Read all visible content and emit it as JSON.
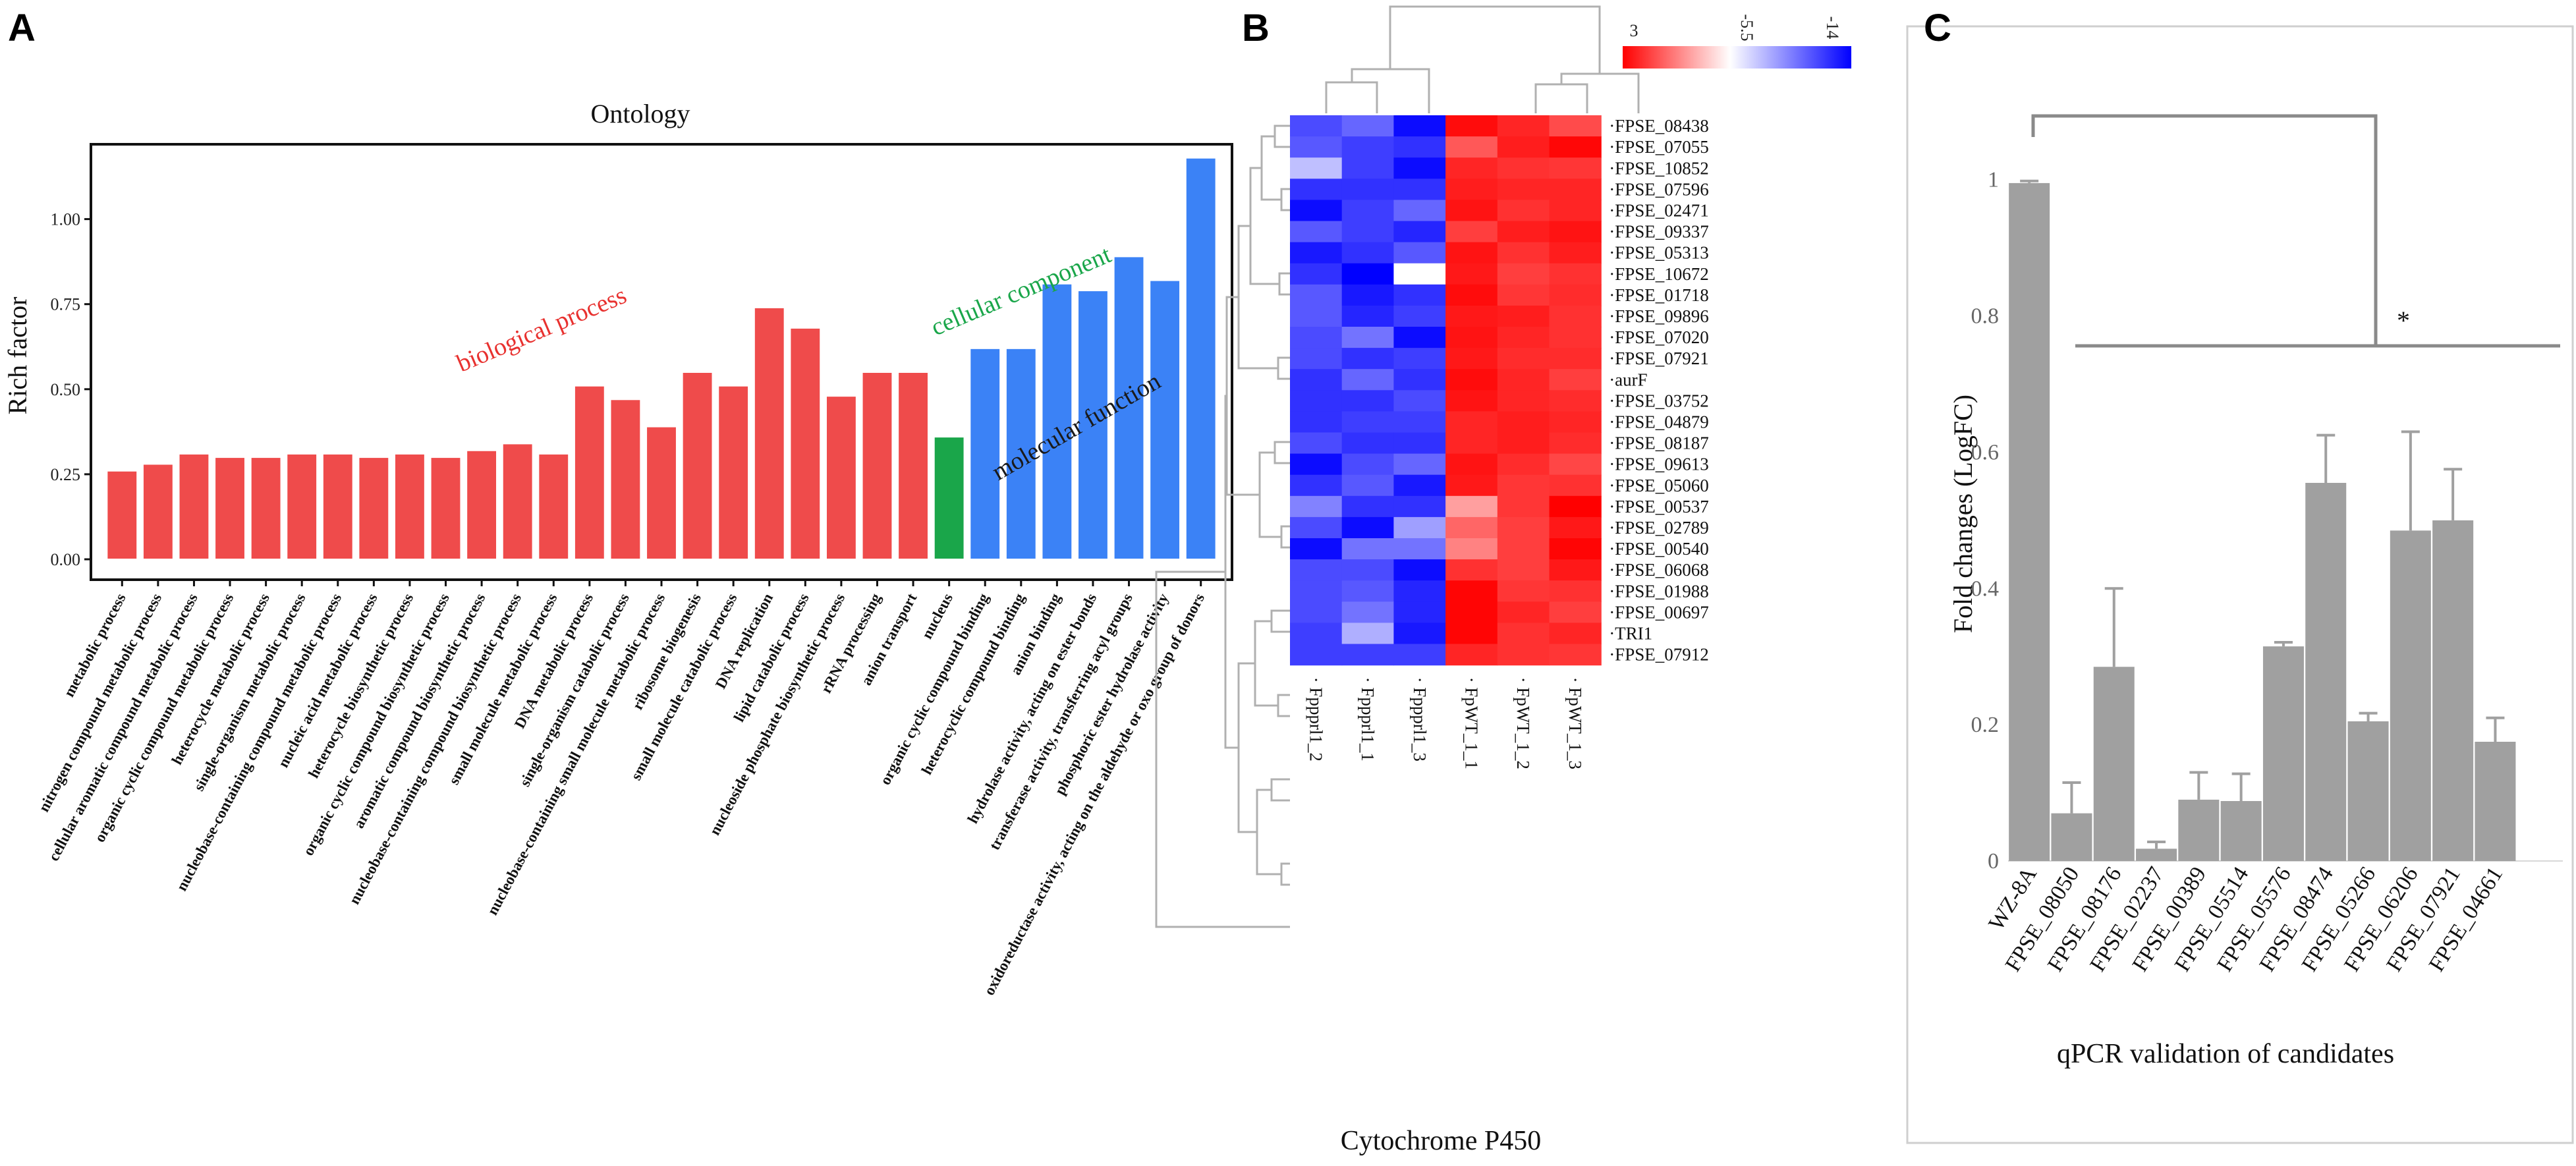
{
  "panel_labels": {
    "a": "A",
    "b": "B",
    "c": "C"
  },
  "chart_data": [
    {
      "type": "bar",
      "panel": "A",
      "title": "Ontology",
      "ylabel": "Rich factor",
      "ylim": [
        -0.06,
        1.22
      ],
      "yticks": [
        0.0,
        0.25,
        0.5,
        0.75,
        1.0
      ],
      "ytick_labels": [
        "0.00",
        "0.25",
        "0.50",
        "0.75",
        "1.00"
      ],
      "categories": [
        "metabolic process",
        "nitrogen compound metabolic process",
        "cellular aromatic compound metabolic process",
        "organic cyclic compound metabolic process",
        "heterocycle metabolic process",
        "single-organism metabolic process",
        "nucleobase-containing compound metabolic process",
        "nucleic acid metabolic process",
        "heterocycle biosynthetic process",
        "organic cyclic compound biosynthetic process",
        "aromatic compound biosynthetic process",
        "nucleobase-containing compound biosynthetic process",
        "small molecule metabolic process",
        "DNA metabolic process",
        "single-organism catabolic process",
        "nucleobase-containing small molecule metabolic process",
        "ribosome biogenesis",
        "small molecule catabolic process",
        "DNA replication",
        "lipid catabolic process",
        "nucleoside phosphate biosynthetic process",
        "rRNA processing",
        "anion transport",
        "nucleus",
        "organic cyclic compound binding",
        "heterocyclic compound binding",
        "anion binding",
        "hydrolase activity, acting on ester bonds",
        "transferase activity, transferring acyl groups",
        "phosphoric ester hydrolase activity",
        "oxidoreductase activity, acting on the aldehyde or oxo group of donors"
      ],
      "values": [
        0.26,
        0.28,
        0.31,
        0.3,
        0.3,
        0.31,
        0.31,
        0.3,
        0.31,
        0.3,
        0.32,
        0.34,
        0.31,
        0.51,
        0.47,
        0.39,
        0.55,
        0.51,
        0.74,
        0.68,
        0.48,
        0.55,
        0.55,
        0.36,
        0.62,
        0.62,
        0.81,
        0.79,
        0.89,
        0.82,
        1.18
      ],
      "groups": [
        "bp",
        "bp",
        "bp",
        "bp",
        "bp",
        "bp",
        "bp",
        "bp",
        "bp",
        "bp",
        "bp",
        "bp",
        "bp",
        "bp",
        "bp",
        "bp",
        "bp",
        "bp",
        "bp",
        "bp",
        "bp",
        "bp",
        "bp",
        "cc",
        "mf",
        "mf",
        "mf",
        "mf",
        "mf",
        "mf",
        "mf"
      ],
      "group_colors": {
        "bp": "#ef4b4b",
        "cc": "#1aa64a",
        "mf": "#3b82f6"
      },
      "annotations": [
        {
          "text": "biological process",
          "color": "#e8312f"
        },
        {
          "text": "cellular component",
          "color": "#1aa64a"
        },
        {
          "text": "molecular function",
          "color": "#1a1a1a"
        }
      ]
    },
    {
      "type": "heatmap",
      "panel": "B",
      "title": "Cytochrome P450",
      "colorbar": {
        "labels": [
          "3",
          "-5.5",
          "-14"
        ],
        "colors": [
          "#ff0000",
          "#ffffff",
          "#0000ff"
        ]
      },
      "columns": [
        "Fppprl1_2",
        "Fppprl1_1",
        "Fppprl1_3",
        "FpWT_1_1",
        "FpWT_1_2",
        "FpWT_1_3"
      ],
      "rows": [
        "FPSE_08438",
        "FPSE_07055",
        "FPSE_10852",
        "FPSE_07596",
        "FPSE_02471",
        "FPSE_09337",
        "FPSE_05313",
        "FPSE_10672",
        "FPSE_01718",
        "FPSE_09896",
        "FPSE_07020",
        "FPSE_07921",
        "aurF",
        "FPSE_03752",
        "FPSE_04879",
        "FPSE_08187",
        "FPSE_09613",
        "FPSE_05060",
        "FPSE_00537",
        "FPSE_02789",
        "FPSE_00540",
        "FPSE_06068",
        "FPSE_01988",
        "FPSE_00697",
        "TRI1",
        "FPSE_07912"
      ],
      "value_range": [
        -14,
        3
      ],
      "values": [
        [
          -11,
          -10,
          -13.5,
          2.5,
          1.5,
          0
        ],
        [
          -10.5,
          -11.5,
          -12,
          -0.5,
          1.8,
          2.7
        ],
        [
          -7,
          -11.5,
          -13.5,
          1.5,
          1,
          0.8
        ],
        [
          -12,
          -12,
          -12,
          1.8,
          1.5,
          1.5
        ],
        [
          -13.5,
          -11.5,
          -10,
          2.2,
          1,
          1.5
        ],
        [
          -10.5,
          -11.5,
          -12.5,
          0.5,
          1.8,
          2.2
        ],
        [
          -13,
          -12,
          -10.5,
          2.2,
          1,
          1.8
        ],
        [
          -12,
          -14,
          -5.5,
          2,
          0.5,
          1
        ],
        [
          -10.5,
          -13,
          -12,
          2.5,
          0.8,
          1.2
        ],
        [
          -10.5,
          -12.5,
          -11.5,
          2,
          1.8,
          1
        ],
        [
          -11,
          -9.5,
          -13.5,
          2.2,
          1.5,
          1
        ],
        [
          -11,
          -12,
          -11.5,
          2,
          1.2,
          1.2
        ],
        [
          -12,
          -10,
          -12,
          2.5,
          1.5,
          0.5
        ],
        [
          -12,
          -12,
          -11,
          2.2,
          1.5,
          1.2
        ],
        [
          -12,
          -11.5,
          -11.5,
          1.5,
          1.8,
          1.5
        ],
        [
          -11,
          -12,
          -12,
          1.5,
          1.8,
          1.2
        ],
        [
          -13.5,
          -11,
          -10,
          2.2,
          1.2,
          0.2
        ],
        [
          -12,
          -10.5,
          -13,
          2,
          0.8,
          1
        ],
        [
          -9,
          -12,
          -12,
          -3,
          0.8,
          3
        ],
        [
          -11,
          -13.5,
          -8,
          -1,
          0.5,
          2
        ],
        [
          -13.5,
          -9.5,
          -9.5,
          -2,
          0.5,
          2.8
        ],
        [
          -11,
          -11,
          -13.5,
          1,
          0.5,
          2
        ],
        [
          -11,
          -10.5,
          -12.5,
          2.8,
          0.8,
          1
        ],
        [
          -11,
          -9.5,
          -12.5,
          2.8,
          1.5,
          0.5
        ],
        [
          -11.5,
          -7.5,
          -13,
          2.8,
          1,
          1.5
        ],
        [
          -11.5,
          -11.5,
          -11.5,
          1.5,
          1,
          0.8
        ]
      ]
    },
    {
      "type": "bar",
      "panel": "C",
      "title": "",
      "xlabel": "qPCR validation of candidates",
      "ylabel": "Fold changes (LogFC)",
      "ylim": [
        0,
        1.08
      ],
      "yticks": [
        0,
        0.2,
        0.4,
        0.6,
        0.8,
        1
      ],
      "ytick_labels": [
        "0",
        "0.2",
        "0.4",
        "0.6",
        "0.8",
        "1"
      ],
      "categories": [
        "WZ-8A",
        "FPSE_08050",
        "FPSE_08176",
        "FPSE_02237",
        "FPSE_00389",
        "FPSE_05514",
        "FPSE_05576",
        "FPSE_08474",
        "FPSE_05266",
        "FPSE_06206",
        "FPSE_07921",
        "FPSE_04661"
      ],
      "values": [
        0.995,
        0.07,
        0.285,
        0.018,
        0.09,
        0.088,
        0.315,
        0.555,
        0.205,
        0.485,
        0.5,
        0.175
      ],
      "errors": [
        0.003,
        0.045,
        0.115,
        0.01,
        0.04,
        0.04,
        0.006,
        0.07,
        0.012,
        0.145,
        0.075,
        0.035
      ],
      "significance": "*",
      "color": "#a0a0a0"
    }
  ]
}
